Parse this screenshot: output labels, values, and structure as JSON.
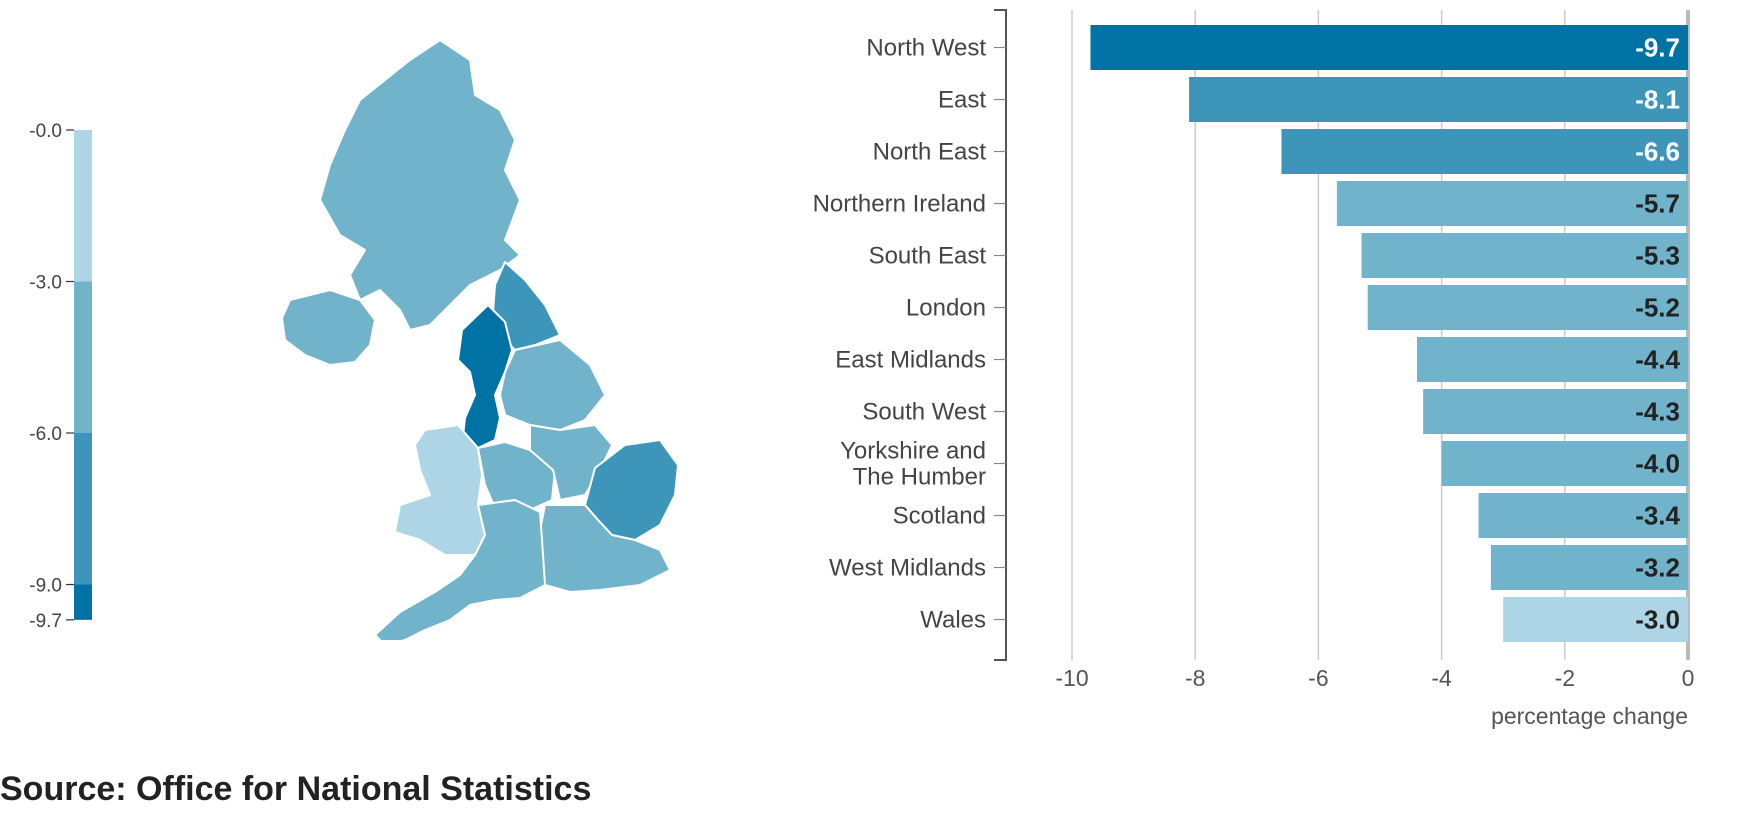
{
  "chart_data": [
    {
      "type": "choropleth",
      "legend": {
        "breaks": [
          -0.0,
          -3.0,
          -6.0,
          -9.0,
          -9.7
        ],
        "tick_labels": [
          "-0.0",
          "-3.0",
          "-6.0",
          "-9.0",
          "-9.7"
        ],
        "colors": [
          "#aed5e6",
          "#72b3cc",
          "#3e95ba",
          "#0072a3"
        ]
      },
      "regions": [
        {
          "name": "Scotland",
          "value": -3.4
        },
        {
          "name": "Northern Ireland",
          "value": -5.7
        },
        {
          "name": "North East",
          "value": -6.6
        },
        {
          "name": "North West",
          "value": -9.7
        },
        {
          "name": "Yorkshire and The Humber",
          "value": -4.0
        },
        {
          "name": "Wales",
          "value": -3.0
        },
        {
          "name": "East Midlands",
          "value": -4.4
        },
        {
          "name": "West Midlands",
          "value": -3.2
        },
        {
          "name": "East",
          "value": -8.1
        },
        {
          "name": "London",
          "value": -5.2
        },
        {
          "name": "South East",
          "value": -5.3
        },
        {
          "name": "South West",
          "value": -4.3
        }
      ]
    },
    {
      "type": "bar",
      "orientation": "horizontal",
      "categories": [
        "North West",
        "East",
        "North East",
        "Northern Ireland",
        "South East",
        "London",
        "East Midlands",
        "South West",
        "Yorkshire and The Humber",
        "Scotland",
        "West Midlands",
        "Wales"
      ],
      "values": [
        -9.7,
        -8.1,
        -6.6,
        -5.7,
        -5.3,
        -5.2,
        -4.4,
        -4.3,
        -4.0,
        -3.4,
        -3.2,
        -3.0
      ],
      "data_labels": [
        "-9.7",
        "-8.1",
        "-6.6",
        "-5.7",
        "-5.3",
        "-5.2",
        "-4.4",
        "-4.3",
        "-4.0",
        "-3.4",
        "-3.2",
        "-3.0"
      ],
      "xlim": [
        -10,
        0
      ],
      "x_ticks": [
        -10,
        -8,
        -6,
        -4,
        -2,
        0
      ],
      "x_tick_labels": [
        "-10",
        "-8",
        "-6",
        "-4",
        "-2",
        "0"
      ],
      "xlabel": "percentage change",
      "grid": true
    }
  ],
  "source": "Source: Office for National Statistics",
  "colors": {
    "band_1": "#aed5e6",
    "band_2": "#72b3cc",
    "band_3": "#3e95ba",
    "band_4": "#0072a3",
    "grid": "#cccccc",
    "axis": "#555555",
    "label_dark": "#222222",
    "label_light": "#ffffff"
  }
}
